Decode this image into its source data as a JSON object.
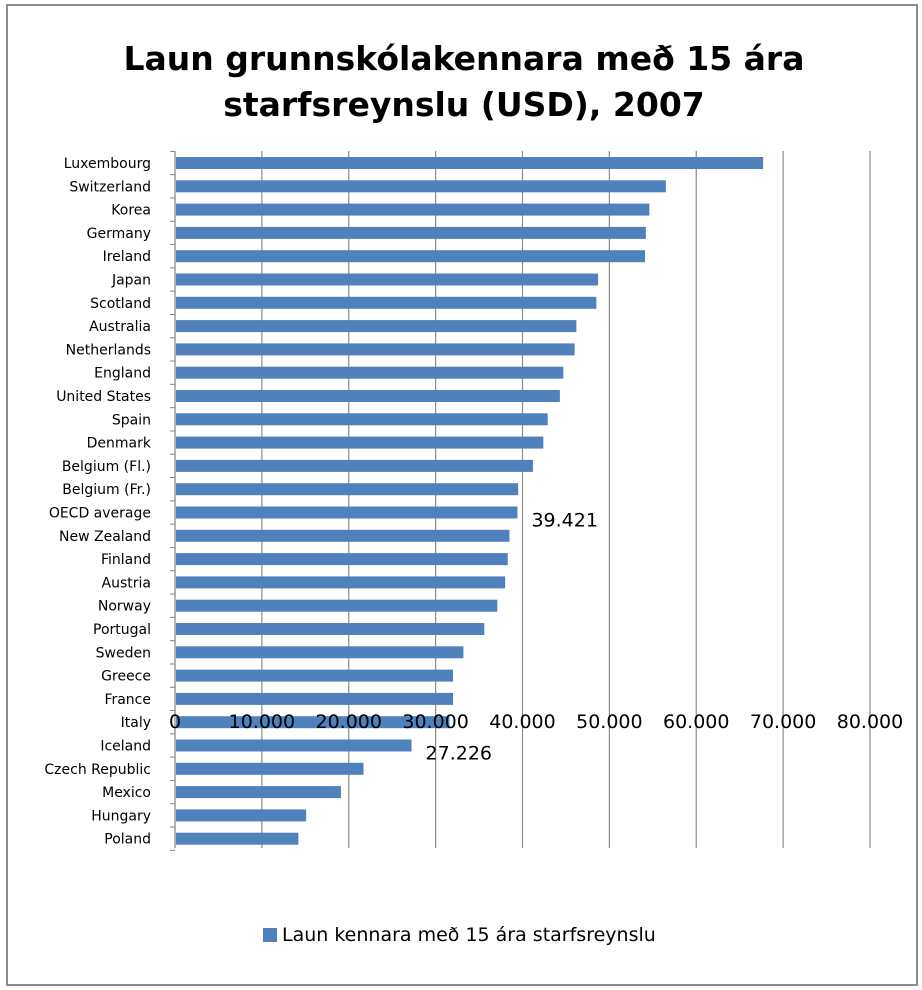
{
  "chart_data": {
    "type": "bar",
    "orientation": "horizontal",
    "title": "Laun grunnskólakennara með 15 ára starfsreynslu (USD), 2007",
    "title_lines": [
      "Laun grunnskólakennara með 15 ára",
      "starfsreynslu (USD), 2007"
    ],
    "categories": [
      "Luxembourg",
      "Switzerland",
      "Korea",
      "Germany",
      "Ireland",
      "Japan",
      "Scotland",
      "Australia",
      "Netherlands",
      "England",
      "United States",
      "Spain",
      "Denmark",
      "Belgium (Fl.)",
      "Belgium (Fr.)",
      "OECD average",
      "New Zealand",
      "Finland",
      "Austria",
      "Norway",
      "Portugal",
      "Sweden",
      "Greece",
      "France",
      "Italy",
      "Iceland",
      "Czech Republic",
      "Mexico",
      "Hungary",
      "Poland"
    ],
    "series": [
      {
        "name": "Laun kennara með 15 ára starfsreynslu",
        "color": "#4f81bd",
        "values": [
          67700,
          56500,
          54600,
          54200,
          54100,
          48700,
          48500,
          46200,
          46000,
          44700,
          44300,
          42900,
          42400,
          41200,
          39500,
          39421,
          38500,
          38300,
          38000,
          37100,
          35600,
          33200,
          32000,
          32000,
          31600,
          27226,
          21700,
          19100,
          15100,
          14200
        ]
      }
    ],
    "data_labels": [
      {
        "category": "OECD average",
        "text": "39.421"
      },
      {
        "category": "Iceland",
        "text": "27.226"
      }
    ],
    "xlim": [
      0,
      80000
    ],
    "xticks": [
      0,
      10000,
      20000,
      30000,
      40000,
      50000,
      60000,
      70000,
      80000
    ],
    "xtick_labels": [
      "0",
      "10.000",
      "20.000",
      "30.000",
      "40.000",
      "50.000",
      "60.000",
      "70.000",
      "80.000"
    ],
    "grid": "vertical-major",
    "legend_position": "bottom"
  }
}
